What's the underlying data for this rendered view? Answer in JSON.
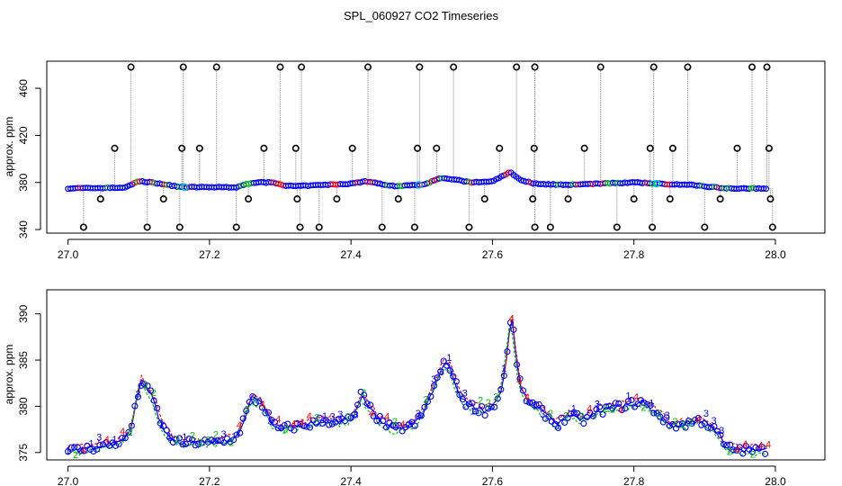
{
  "title": "SPL_060927  CO2 Timeseries",
  "colors": {
    "outlier": "#000000",
    "line1": "#0000ff",
    "line2": "#ff0000",
    "line3": "#00c000",
    "cyan": "#00c0e0",
    "box": "#000000"
  },
  "chart_data": [
    {
      "type": "scatter",
      "name": "raw-panel",
      "title": "SPL_060927  CO2 Timeseries",
      "xlabel": "",
      "ylabel": "approx. ppm",
      "xlim": [
        26.97,
        28.07
      ],
      "ylim": [
        337,
        483
      ],
      "xticks": [
        27.0,
        27.2,
        27.4,
        27.6,
        27.8,
        28.0
      ],
      "xtick_labels": [
        "27.0",
        "27.2",
        "27.4",
        "27.6",
        "27.8",
        "28.0"
      ],
      "yticks": [
        340,
        380,
        420,
        460
      ],
      "ytick_labels": [
        "340",
        "380",
        "420",
        "460"
      ],
      "baseline": [
        [
          27.0,
          375
        ],
        [
          27.08,
          375.5
        ],
        [
          27.1,
          381
        ],
        [
          27.12,
          380
        ],
        [
          27.16,
          376
        ],
        [
          27.24,
          376
        ],
        [
          27.26,
          380
        ],
        [
          27.29,
          380
        ],
        [
          27.31,
          377
        ],
        [
          27.33,
          377
        ],
        [
          27.4,
          379
        ],
        [
          27.42,
          381
        ],
        [
          27.46,
          377
        ],
        [
          27.5,
          378
        ],
        [
          27.53,
          384
        ],
        [
          27.57,
          380
        ],
        [
          27.6,
          381
        ],
        [
          27.625,
          389
        ],
        [
          27.64,
          382
        ],
        [
          27.66,
          379
        ],
        [
          27.7,
          378
        ],
        [
          27.75,
          379
        ],
        [
          27.8,
          380
        ],
        [
          27.83,
          379
        ],
        [
          27.88,
          378
        ],
        [
          27.93,
          375
        ],
        [
          27.99,
          375
        ]
      ],
      "outliers": [
        [
          27.022,
          342
        ],
        [
          27.046,
          366
        ],
        [
          27.066,
          409
        ],
        [
          27.089,
          478
        ],
        [
          27.112,
          342
        ],
        [
          27.135,
          366
        ],
        [
          27.158,
          342
        ],
        [
          27.161,
          409
        ],
        [
          27.163,
          478
        ],
        [
          27.186,
          409
        ],
        [
          27.21,
          478
        ],
        [
          27.238,
          342
        ],
        [
          27.255,
          366
        ],
        [
          27.277,
          409
        ],
        [
          27.3,
          478
        ],
        [
          27.322,
          409
        ],
        [
          27.324,
          366
        ],
        [
          27.328,
          342
        ],
        [
          27.33,
          478
        ],
        [
          27.355,
          342
        ],
        [
          27.38,
          366
        ],
        [
          27.402,
          409
        ],
        [
          27.424,
          478
        ],
        [
          27.444,
          342
        ],
        [
          27.467,
          366
        ],
        [
          27.49,
          342
        ],
        [
          27.494,
          409
        ],
        [
          27.497,
          478
        ],
        [
          27.521,
          409
        ],
        [
          27.545,
          478
        ],
        [
          27.567,
          342
        ],
        [
          27.589,
          366
        ],
        [
          27.61,
          409
        ],
        [
          27.634,
          478
        ],
        [
          27.657,
          366
        ],
        [
          27.659,
          409
        ],
        [
          27.66,
          342
        ],
        [
          27.66,
          478
        ],
        [
          27.682,
          342
        ],
        [
          27.707,
          366
        ],
        [
          27.73,
          409
        ],
        [
          27.753,
          478
        ],
        [
          27.776,
          342
        ],
        [
          27.8,
          366
        ],
        [
          27.823,
          409
        ],
        [
          27.826,
          342
        ],
        [
          27.828,
          478
        ],
        [
          27.851,
          366
        ],
        [
          27.855,
          409
        ],
        [
          27.876,
          478
        ],
        [
          27.9,
          342
        ],
        [
          27.922,
          366
        ],
        [
          27.946,
          409
        ],
        [
          27.967,
          478
        ],
        [
          27.988,
          478
        ],
        [
          27.991,
          409
        ],
        [
          27.993,
          366
        ],
        [
          27.996,
          342
        ]
      ],
      "markers": "circles"
    },
    {
      "type": "line",
      "name": "smoothed-panel",
      "xlabel": "",
      "ylabel": "approx. ppm",
      "xlim": [
        26.97,
        28.07
      ],
      "ylim": [
        374.2,
        392.6
      ],
      "xticks": [
        27.0,
        27.2,
        27.4,
        27.6,
        27.8,
        28.0
      ],
      "xtick_labels": [
        "27.0",
        "27.2",
        "27.4",
        "27.6",
        "27.8",
        "28.0"
      ],
      "yticks": [
        375,
        380,
        385,
        390
      ],
      "ytick_labels": [
        "375",
        "380",
        "385",
        "390"
      ],
      "x": [
        27.0,
        27.02,
        27.04,
        27.06,
        27.08,
        27.09,
        27.1,
        27.105,
        27.11,
        27.12,
        27.13,
        27.14,
        27.15,
        27.16,
        27.18,
        27.2,
        27.22,
        27.24,
        27.25,
        27.26,
        27.27,
        27.28,
        27.29,
        27.3,
        27.32,
        27.34,
        27.36,
        27.38,
        27.4,
        27.41,
        27.415,
        27.42,
        27.44,
        27.46,
        27.48,
        27.49,
        27.5,
        27.52,
        27.53,
        27.54,
        27.55,
        27.56,
        27.57,
        27.59,
        27.6,
        27.61,
        27.62,
        27.627,
        27.635,
        27.64,
        27.65,
        27.67,
        27.69,
        27.7,
        27.71,
        27.73,
        27.75,
        27.78,
        27.81,
        27.83,
        27.85,
        27.87,
        27.89,
        27.9,
        27.92,
        27.93,
        27.95,
        27.97,
        27.99
      ],
      "series": [
        {
          "name": "1",
          "values": [
            375.2,
            375.3,
            375.6,
            375.9,
            376.3,
            378.0,
            381.5,
            383.0,
            382.0,
            381.0,
            378.5,
            377.0,
            376.3,
            376.0,
            376.1,
            376.0,
            376.2,
            376.8,
            379.0,
            380.8,
            380.5,
            379.5,
            378.0,
            377.5,
            377.8,
            378.0,
            378.5,
            378.3,
            378.5,
            380.0,
            381.5,
            380.5,
            378.5,
            377.5,
            377.8,
            378.0,
            379.0,
            382.5,
            384.5,
            384.3,
            382.0,
            380.5,
            380.0,
            379.5,
            380.0,
            381.0,
            385.0,
            390.0,
            384.5,
            382.0,
            380.5,
            379.5,
            378.0,
            378.5,
            379.0,
            378.5,
            379.5,
            380.0,
            380.5,
            379.5,
            378.0,
            378.0,
            378.5,
            378.3,
            377.0,
            375.5,
            375.3,
            375.2,
            375.3
          ]
        }
      ],
      "point_label_sets": [
        "1",
        "2",
        "3",
        "4"
      ]
    }
  ]
}
